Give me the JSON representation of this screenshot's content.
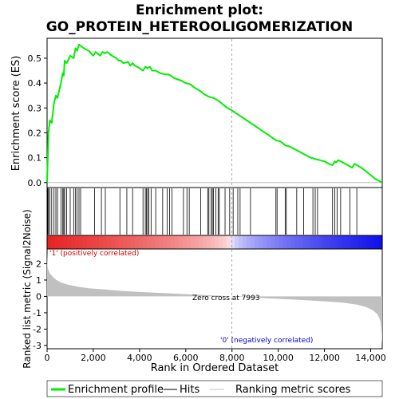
{
  "chart_data": {
    "type": "line",
    "title_lines": [
      "Enrichment plot:",
      "GO_PROTEIN_HETEROOLIGOMERIZATION"
    ],
    "xlabel": "Rank in Ordered Dataset",
    "ylabel_top": "Enrichment score (ES)",
    "ylabel_bottom": "Ranked list metric (Signal2Noise)",
    "xlim": [
      0,
      14500
    ],
    "x_ticks": [
      0,
      2000,
      4000,
      6000,
      8000,
      10000,
      12000,
      14000
    ],
    "x_tick_labels": [
      "0",
      "2,000",
      "4,000",
      "6,000",
      "8,000",
      "10,000",
      "12,000",
      "14,000"
    ],
    "es_ylim": [
      -0.02,
      0.58
    ],
    "es_ticks": [
      0.0,
      0.1,
      0.2,
      0.3,
      0.4,
      0.5
    ],
    "es_tick_labels": [
      "0.0",
      "0.1",
      "0.2",
      "0.3",
      "0.4",
      "0.5"
    ],
    "metric_ylim": [
      -3.2,
      2.9
    ],
    "metric_ticks": [
      2,
      1,
      0,
      -1,
      -2,
      -3
    ],
    "metric_tick_labels": [
      "2",
      "1",
      "0",
      "-1",
      "-2",
      "-3"
    ],
    "positive_label": "'1' (positively correlated)",
    "negative_label": "'0' (negatively correlated)",
    "zero_cross_label": "Zero cross at 7993",
    "zero_cross": 7993,
    "colors": {
      "es_line": "#00ee00",
      "hits": "#000000",
      "metric_fill": "#c0c0c0",
      "positive_text": "#cc0000",
      "negative_text": "#0000cc",
      "zero_line": "#aaaaaa"
    },
    "series": [
      {
        "name": "Enrichment profile",
        "x": [
          0,
          30,
          60,
          120,
          200,
          300,
          380,
          450,
          600,
          680,
          720,
          760,
          850,
          1000,
          1150,
          1230,
          1300,
          1380,
          1600,
          1800,
          2000,
          2100,
          2300,
          2400,
          2500,
          2600,
          2800,
          3000,
          3100,
          3200,
          3300,
          3500,
          3600,
          3700,
          3800,
          4000,
          4150,
          4250,
          4350,
          4450,
          4550,
          4700,
          4900,
          5100,
          5250,
          5350,
          5500,
          5800,
          6000,
          6200,
          6400,
          6600,
          6800,
          7000,
          7200,
          7400,
          7600,
          7800,
          8000,
          8400,
          8800,
          9200,
          9600,
          9900,
          10100,
          10300,
          10500,
          10800,
          11000,
          11200,
          11400,
          11600,
          11800,
          12000,
          12200,
          12350,
          12450,
          12500,
          12600,
          12800,
          13000,
          13200,
          13300,
          13400,
          13600,
          13800,
          14000,
          14200,
          14400,
          14480
        ],
        "y": [
          0.0,
          0.1,
          0.2,
          0.25,
          0.24,
          0.32,
          0.35,
          0.34,
          0.4,
          0.44,
          0.43,
          0.49,
          0.48,
          0.51,
          0.5,
          0.54,
          0.53,
          0.555,
          0.54,
          0.53,
          0.51,
          0.525,
          0.51,
          0.525,
          0.52,
          0.525,
          0.51,
          0.5,
          0.49,
          0.49,
          0.48,
          0.485,
          0.47,
          0.48,
          0.47,
          0.46,
          0.45,
          0.465,
          0.46,
          0.465,
          0.45,
          0.45,
          0.44,
          0.435,
          0.435,
          0.43,
          0.42,
          0.41,
          0.4,
          0.395,
          0.38,
          0.37,
          0.355,
          0.345,
          0.34,
          0.33,
          0.315,
          0.3,
          0.29,
          0.265,
          0.24,
          0.215,
          0.19,
          0.17,
          0.165,
          0.15,
          0.145,
          0.13,
          0.12,
          0.11,
          0.1,
          0.095,
          0.09,
          0.085,
          0.075,
          0.07,
          0.085,
          0.08,
          0.09,
          0.08,
          0.07,
          0.06,
          0.075,
          0.07,
          0.06,
          0.045,
          0.03,
          0.015,
          0.005,
          0.0
        ]
      },
      {
        "name": "Hits",
        "x": [
          30,
          60,
          120,
          200,
          300,
          380,
          450,
          600,
          680,
          720,
          760,
          850,
          1000,
          1150,
          1230,
          1300,
          1380,
          1450,
          2050,
          2350,
          2520,
          3150,
          3450,
          3700,
          4150,
          4250,
          4300,
          4350,
          4400,
          4500,
          4700,
          5000,
          5200,
          5300,
          5400,
          5900,
          6050,
          6150,
          6650,
          6950,
          7000,
          7100,
          7150,
          7200,
          7300,
          7400,
          7450,
          7700,
          7900,
          8050,
          8250,
          8350,
          8800,
          9900,
          9950,
          10300,
          10350,
          10800,
          11100,
          11500,
          11600,
          11700,
          12350,
          12450,
          12550,
          12700,
          13100,
          13400
        ]
      },
      {
        "name": "Ranking metric scores",
        "x": [
          0,
          20,
          60,
          120,
          250,
          400,
          600,
          900,
          1300,
          1800,
          2500,
          3200,
          4000,
          5000,
          6000,
          7000,
          7993,
          9000,
          10000,
          11000,
          12000,
          12800,
          13400,
          13800,
          14100,
          14300,
          14420,
          14470,
          14500
        ],
        "y": [
          2.7,
          1.8,
          1.6,
          1.4,
          1.2,
          1.0,
          0.85,
          0.72,
          0.6,
          0.5,
          0.42,
          0.34,
          0.27,
          0.2,
          0.14,
          0.07,
          0.0,
          -0.08,
          -0.15,
          -0.22,
          -0.3,
          -0.38,
          -0.5,
          -0.65,
          -0.85,
          -1.1,
          -1.5,
          -2.2,
          -3.0
        ]
      }
    ],
    "legend": [
      {
        "label": "Enrichment profile",
        "style": "green-thick-line"
      },
      {
        "label": "Hits",
        "style": "black-line"
      },
      {
        "label": "Ranking metric scores",
        "style": "gray-line"
      }
    ],
    "legend_position": "bottom"
  }
}
